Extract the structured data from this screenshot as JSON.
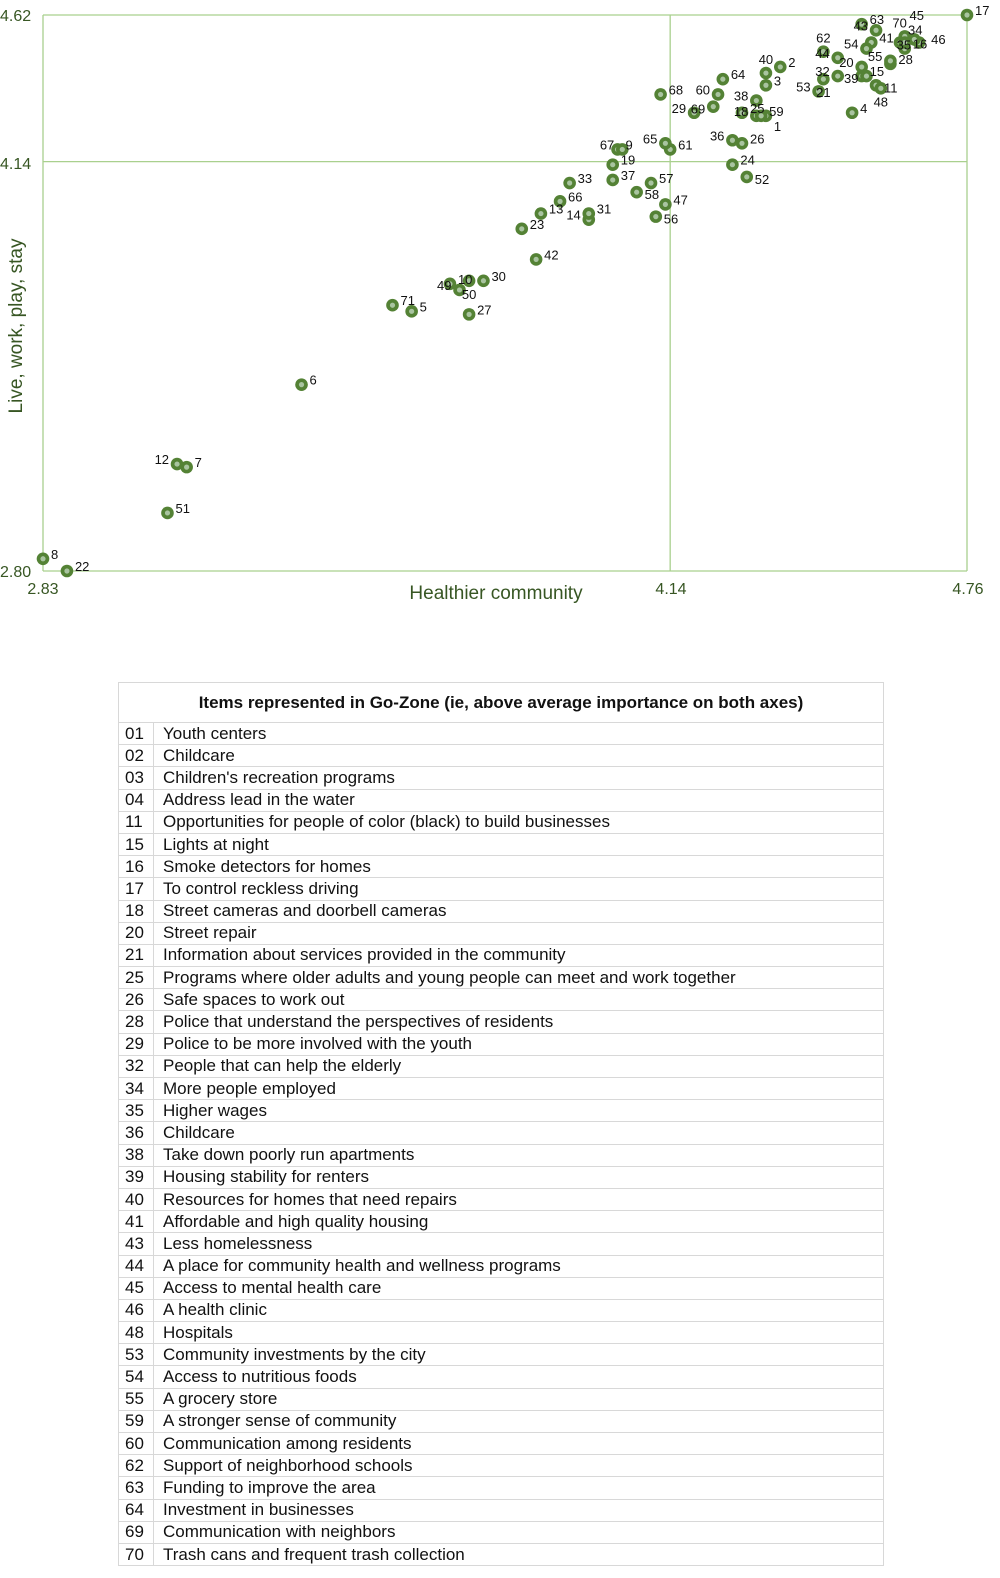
{
  "chart_data": {
    "type": "scatter",
    "xlabel": "Healthier community",
    "ylabel": "Live, work, play, stay",
    "xlim": [
      2.83,
      4.76
    ],
    "ylim": [
      2.8,
      4.62
    ],
    "x_ticks": [
      "2.83",
      "4.14",
      "4.76"
    ],
    "y_ticks": [
      "2.80",
      "4.14",
      "4.62"
    ],
    "x_mean": 4.14,
    "y_mean": 4.14,
    "colors": {
      "marker": "#548235",
      "marker_center": "#a9c4a0",
      "grid": "#a9d08e",
      "axis_text": "#375623"
    },
    "points": [
      {
        "id": "1",
        "x": 4.34,
        "y": 4.29
      },
      {
        "id": "2",
        "x": 4.37,
        "y": 4.45
      },
      {
        "id": "3",
        "x": 4.34,
        "y": 4.39
      },
      {
        "id": "4",
        "x": 4.52,
        "y": 4.3
      },
      {
        "id": "5",
        "x": 3.6,
        "y": 3.65
      },
      {
        "id": "6",
        "x": 3.37,
        "y": 3.41
      },
      {
        "id": "7",
        "x": 3.13,
        "y": 3.14
      },
      {
        "id": "8",
        "x": 2.83,
        "y": 2.84
      },
      {
        "id": "9",
        "x": 4.03,
        "y": 4.18
      },
      {
        "id": "10",
        "x": 3.68,
        "y": 3.74
      },
      {
        "id": "11",
        "x": 4.57,
        "y": 4.39
      },
      {
        "id": "12",
        "x": 3.11,
        "y": 3.15
      },
      {
        "id": "13",
        "x": 3.87,
        "y": 3.97
      },
      {
        "id": "14",
        "x": 3.97,
        "y": 3.95
      },
      {
        "id": "15",
        "x": 4.54,
        "y": 4.42
      },
      {
        "id": "16",
        "x": 4.63,
        "y": 4.51
      },
      {
        "id": "17",
        "x": 4.76,
        "y": 4.62
      },
      {
        "id": "18",
        "x": 4.32,
        "y": 4.29
      },
      {
        "id": "19",
        "x": 4.02,
        "y": 4.13
      },
      {
        "id": "20",
        "x": 4.54,
        "y": 4.45
      },
      {
        "id": "21",
        "x": 4.46,
        "y": 4.41
      },
      {
        "id": "22",
        "x": 2.88,
        "y": 2.8
      },
      {
        "id": "23",
        "x": 3.83,
        "y": 3.92
      },
      {
        "id": "24",
        "x": 4.27,
        "y": 4.13
      },
      {
        "id": "25",
        "x": 4.29,
        "y": 4.3
      },
      {
        "id": "26",
        "x": 4.29,
        "y": 4.2
      },
      {
        "id": "27",
        "x": 3.72,
        "y": 3.64
      },
      {
        "id": "28",
        "x": 4.6,
        "y": 4.46
      },
      {
        "id": "29",
        "x": 4.19,
        "y": 4.3
      },
      {
        "id": "30",
        "x": 3.75,
        "y": 3.75
      },
      {
        "id": "31",
        "x": 3.97,
        "y": 3.97
      },
      {
        "id": "32",
        "x": 4.49,
        "y": 4.42
      },
      {
        "id": "33",
        "x": 3.93,
        "y": 4.07
      },
      {
        "id": "34",
        "x": 4.62,
        "y": 4.53
      },
      {
        "id": "35",
        "x": 4.66,
        "y": 4.53
      },
      {
        "id": "36",
        "x": 4.27,
        "y": 4.21
      },
      {
        "id": "37",
        "x": 4.02,
        "y": 4.08
      },
      {
        "id": "38",
        "x": 4.32,
        "y": 4.34
      },
      {
        "id": "39",
        "x": 4.55,
        "y": 4.42
      },
      {
        "id": "40",
        "x": 4.34,
        "y": 4.43
      },
      {
        "id": "41",
        "x": 4.56,
        "y": 4.53
      },
      {
        "id": "42",
        "x": 3.86,
        "y": 3.82
      },
      {
        "id": "43",
        "x": 4.57,
        "y": 4.57
      },
      {
        "id": "44",
        "x": 4.49,
        "y": 4.48
      },
      {
        "id": "45",
        "x": 4.63,
        "y": 4.55
      },
      {
        "id": "46",
        "x": 4.65,
        "y": 4.54
      },
      {
        "id": "47",
        "x": 4.13,
        "y": 4.0
      },
      {
        "id": "48",
        "x": 4.58,
        "y": 4.38
      },
      {
        "id": "49",
        "x": 3.7,
        "y": 3.72
      },
      {
        "id": "50",
        "x": 3.72,
        "y": 3.75
      },
      {
        "id": "51",
        "x": 3.09,
        "y": 2.99
      },
      {
        "id": "52",
        "x": 4.3,
        "y": 4.09
      },
      {
        "id": "53",
        "x": 4.45,
        "y": 4.37
      },
      {
        "id": "54",
        "x": 4.55,
        "y": 4.51
      },
      {
        "id": "55",
        "x": 4.6,
        "y": 4.47
      },
      {
        "id": "56",
        "x": 4.11,
        "y": 3.96
      },
      {
        "id": "57",
        "x": 4.1,
        "y": 4.07
      },
      {
        "id": "58",
        "x": 4.07,
        "y": 4.04
      },
      {
        "id": "59",
        "x": 4.33,
        "y": 4.29
      },
      {
        "id": "60",
        "x": 4.24,
        "y": 4.36
      },
      {
        "id": "61",
        "x": 4.14,
        "y": 4.18
      },
      {
        "id": "62",
        "x": 4.46,
        "y": 4.5
      },
      {
        "id": "63",
        "x": 4.54,
        "y": 4.59
      },
      {
        "id": "64",
        "x": 4.25,
        "y": 4.41
      },
      {
        "id": "65",
        "x": 4.13,
        "y": 4.2
      },
      {
        "id": "66",
        "x": 3.91,
        "y": 4.01
      },
      {
        "id": "67",
        "x": 4.04,
        "y": 4.18
      },
      {
        "id": "68",
        "x": 4.12,
        "y": 4.36
      },
      {
        "id": "69",
        "x": 4.23,
        "y": 4.32
      },
      {
        "id": "70",
        "x": 4.63,
        "y": 4.53
      },
      {
        "id": "71",
        "x": 3.56,
        "y": 3.67
      }
    ]
  },
  "table": {
    "header": "Items represented in Go-Zone (ie, above average importance on both axes)",
    "rows": [
      [
        "01",
        "Youth centers"
      ],
      [
        "02",
        "Childcare"
      ],
      [
        "03",
        "Children's recreation programs"
      ],
      [
        "04",
        "Address lead in the water"
      ],
      [
        "11",
        "Opportunities for people of color (black) to build businesses"
      ],
      [
        "15",
        "Lights at night"
      ],
      [
        "16",
        "Smoke detectors for homes"
      ],
      [
        "17",
        "To control reckless driving"
      ],
      [
        "18",
        "Street cameras and doorbell cameras"
      ],
      [
        "20",
        "Street repair"
      ],
      [
        "21",
        "Information about services provided in the community"
      ],
      [
        "25",
        "Programs where older adults and young people can meet and work together"
      ],
      [
        "26",
        "Safe spaces to work out"
      ],
      [
        "28",
        "Police that understand the perspectives of residents"
      ],
      [
        "29",
        "Police to be more involved with the youth"
      ],
      [
        "32",
        "People that can help the elderly"
      ],
      [
        "34",
        "More people employed"
      ],
      [
        "35",
        "Higher wages"
      ],
      [
        "36",
        "Childcare"
      ],
      [
        "38",
        "Take down poorly run apartments"
      ],
      [
        "39",
        "Housing stability for renters"
      ],
      [
        "40",
        "Resources for homes that need repairs"
      ],
      [
        "41",
        "Affordable and high quality housing"
      ],
      [
        "43",
        "Less homelessness"
      ],
      [
        "44",
        "A place for community health and wellness programs"
      ],
      [
        "45",
        "Access to mental health care"
      ],
      [
        "46",
        "A health clinic"
      ],
      [
        "48",
        "Hospitals"
      ],
      [
        "53",
        "Community investments by the city"
      ],
      [
        "54",
        "Access to nutritious foods"
      ],
      [
        "55",
        "A grocery store"
      ],
      [
        "59",
        "A stronger sense of community"
      ],
      [
        "60",
        "Communication among residents"
      ],
      [
        "62",
        "Support of neighborhood schools"
      ],
      [
        "63",
        "Funding to improve the area"
      ],
      [
        "64",
        "Investment in businesses"
      ],
      [
        "69",
        "Communication with neighbors"
      ],
      [
        "70",
        "Trash cans and frequent trash collection"
      ]
    ]
  }
}
